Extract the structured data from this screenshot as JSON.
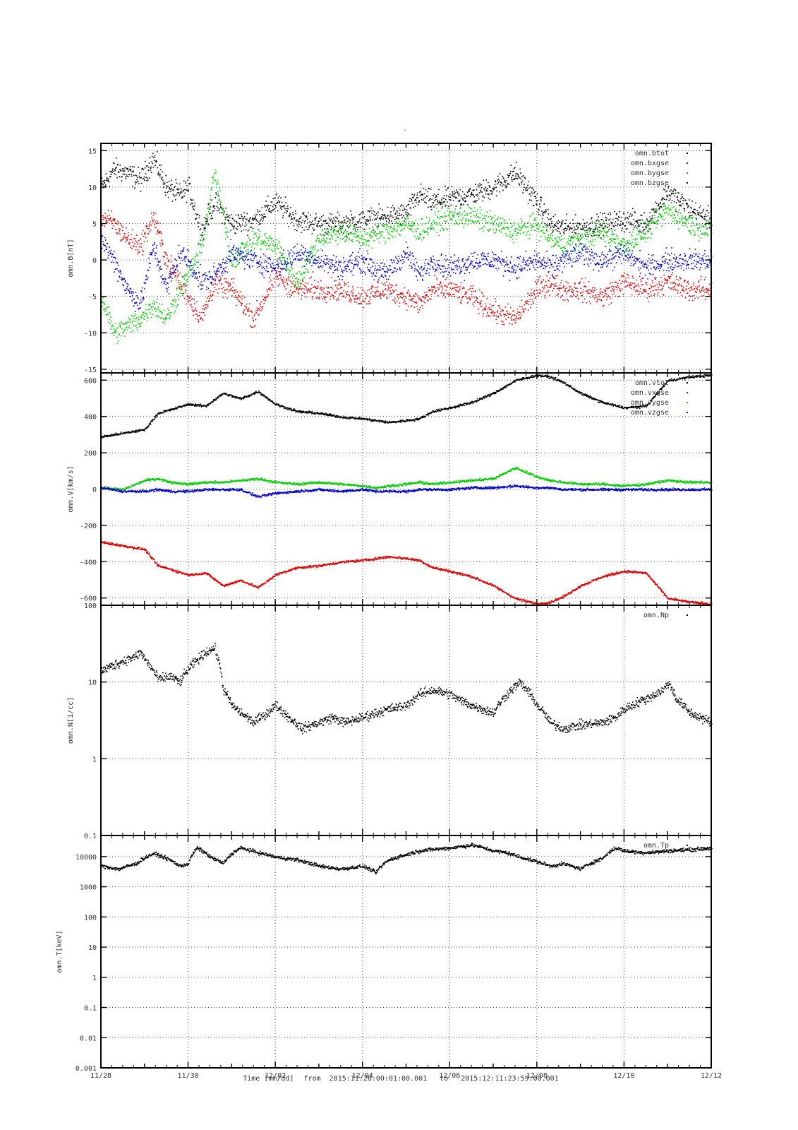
{
  "figure_title": "-",
  "footer": {
    "time_label": "Time [mm/dd]",
    "from_label": "from",
    "start": "2015:11:28:00:01:00.001",
    "to_label": "to",
    "end": "2015:12:11:23:59:00.001"
  },
  "colors": {
    "black": "#000000",
    "red": "#dd0000",
    "green": "#00cc00",
    "blue": "#0000cc",
    "grid": "#555555"
  },
  "chart_data": [
    {
      "type": "scatter",
      "ylabel": "omn.B[nT]",
      "yscale": "linear",
      "ylim": [
        -15.5,
        16
      ],
      "yticks": [
        -15,
        -10,
        -5,
        0,
        5,
        10,
        15
      ],
      "ytick_labels": [
        "-15",
        "-10",
        "-5",
        "0",
        "5",
        "10",
        "15"
      ],
      "xlim": [
        "11/28",
        "12/12"
      ],
      "xticks": [
        "11/28",
        "11/30",
        "12/02",
        "12/04",
        "12/06",
        "12/08",
        "12/10",
        "12/12"
      ],
      "grid": true,
      "legend": "top-right",
      "series": [
        {
          "name": "omn.btot",
          "color": "#000000",
          "x": [
            0,
            0.3,
            0.6,
            0.9,
            1.2,
            1.5,
            1.8,
            2.0,
            2.3,
            2.6,
            3.0,
            3.5,
            4.0,
            4.5,
            5.0,
            5.5,
            6.0,
            6.5,
            7.0,
            7.3,
            7.6,
            8.0,
            8.5,
            9.0,
            9.5,
            10.0,
            10.3,
            10.6,
            11.0,
            11.5,
            12.0,
            12.5,
            13.0,
            13.5,
            14.0
          ],
          "y": [
            10,
            12.5,
            12,
            11,
            14,
            10,
            9,
            10,
            4,
            8,
            5,
            5.5,
            8,
            5.5,
            5,
            5,
            5.5,
            6,
            6.5,
            9,
            8,
            8.5,
            9,
            10,
            12,
            8,
            5,
            4.5,
            4.5,
            5,
            5.5,
            5,
            9.5,
            7,
            5.5
          ]
        },
        {
          "name": "omn.bxgse",
          "color": "#dd0000",
          "x": [
            0,
            0.3,
            0.6,
            0.9,
            1.2,
            1.5,
            1.8,
            2.0,
            2.3,
            2.6,
            3.0,
            3.5,
            4.0,
            4.5,
            5.0,
            5.5,
            6.0,
            6.5,
            7.0,
            7.3,
            7.6,
            8.0,
            8.5,
            9.0,
            9.5,
            10.0,
            10.3,
            10.6,
            11.0,
            11.5,
            12.0,
            12.5,
            13.0,
            13.5,
            14.0
          ],
          "y": [
            6,
            5,
            3,
            2,
            6,
            0,
            -3,
            -5,
            -8,
            -3,
            -4,
            -8,
            -2,
            -4,
            -4,
            -4,
            -5,
            -4,
            -5,
            -6,
            -4,
            -4,
            -5,
            -7,
            -8,
            -4,
            -3,
            -4,
            -4,
            -5,
            -3,
            -4,
            -3,
            -4,
            -4
          ]
        },
        {
          "name": "omn.bygse",
          "color": "#00cc00",
          "x": [
            0,
            0.3,
            0.6,
            0.9,
            1.2,
            1.5,
            1.8,
            2.0,
            2.3,
            2.6,
            3.0,
            3.5,
            4.0,
            4.5,
            5.0,
            5.5,
            6.0,
            6.5,
            7.0,
            7.3,
            7.6,
            8.0,
            8.5,
            9.0,
            9.5,
            10.0,
            10.3,
            10.6,
            11.0,
            11.5,
            12.0,
            12.5,
            13.0,
            13.5,
            14.0
          ],
          "y": [
            -5,
            -10,
            -9,
            -8,
            -6,
            -8,
            -4,
            -2,
            2,
            12,
            0,
            3,
            2,
            -3,
            3,
            4,
            3,
            4,
            5,
            4,
            5,
            6,
            6,
            5,
            4,
            5,
            3,
            2,
            3,
            4,
            2,
            4,
            7,
            5,
            4
          ]
        },
        {
          "name": "omn.bzgse",
          "color": "#0000cc",
          "x": [
            0,
            0.3,
            0.6,
            0.9,
            1.2,
            1.5,
            1.8,
            2.0,
            2.3,
            2.6,
            3.0,
            3.5,
            4.0,
            4.5,
            5.0,
            5.5,
            6.0,
            6.5,
            7.0,
            7.3,
            7.6,
            8.0,
            8.5,
            9.0,
            9.5,
            10.0,
            10.3,
            10.6,
            11.0,
            11.5,
            12.0,
            12.5,
            13.0,
            13.5,
            14.0
          ],
          "y": [
            3,
            0,
            -4,
            -6,
            2,
            -4,
            1,
            0,
            -3,
            -2,
            1,
            0,
            -1,
            1,
            0,
            -1,
            0,
            -2,
            1,
            -2,
            0,
            -1,
            0,
            0,
            -1,
            0,
            -1,
            0,
            1,
            0,
            1,
            -1,
            0,
            0,
            0
          ]
        }
      ]
    },
    {
      "type": "scatter",
      "ylabel": "omn.V[km/s]",
      "yscale": "linear",
      "ylim": [
        -640,
        640
      ],
      "yticks": [
        -600,
        -400,
        -200,
        0,
        200,
        400,
        600
      ],
      "ytick_labels": [
        "-600",
        "-400",
        "-200",
        "0",
        "200",
        "400",
        "600"
      ],
      "xlim": [
        "11/28",
        "12/12"
      ],
      "grid": true,
      "legend": "top-right",
      "series": [
        {
          "name": "omn.vtot",
          "color": "#000000",
          "x": [
            0,
            0.5,
            1.0,
            1.3,
            1.6,
            2.0,
            2.4,
            2.8,
            3.2,
            3.6,
            4.0,
            4.5,
            5.0,
            5.5,
            6.0,
            6.3,
            6.6,
            7.0,
            7.3,
            7.6,
            8.0,
            8.5,
            9.0,
            9.5,
            10.0,
            10.3,
            10.6,
            11.0,
            11.5,
            12.0,
            12.5,
            13.0,
            13.5,
            14.0
          ],
          "y": [
            290,
            310,
            330,
            420,
            440,
            470,
            460,
            530,
            500,
            540,
            470,
            430,
            420,
            400,
            390,
            380,
            370,
            380,
            390,
            430,
            450,
            480,
            530,
            600,
            630,
            620,
            590,
            530,
            480,
            450,
            460,
            600,
            620,
            630
          ]
        },
        {
          "name": "omn.vxgse",
          "color": "#dd0000",
          "x": [
            0,
            0.5,
            1.0,
            1.3,
            1.6,
            2.0,
            2.4,
            2.8,
            3.2,
            3.6,
            4.0,
            4.5,
            5.0,
            5.5,
            6.0,
            6.3,
            6.6,
            7.0,
            7.3,
            7.6,
            8.0,
            8.5,
            9.0,
            9.5,
            10.0,
            10.3,
            10.6,
            11.0,
            11.5,
            12.0,
            12.5,
            13.0,
            13.5,
            14.0
          ],
          "y": [
            -290,
            -310,
            -330,
            -420,
            -440,
            -470,
            -460,
            -530,
            -500,
            -540,
            -470,
            -430,
            -420,
            -400,
            -390,
            -380,
            -370,
            -380,
            -390,
            -430,
            -450,
            -480,
            -530,
            -600,
            -630,
            -620,
            -590,
            -530,
            -480,
            -450,
            -460,
            -600,
            -620,
            -630
          ]
        },
        {
          "name": "omn.vygse",
          "color": "#00cc00",
          "x": [
            0,
            0.5,
            1.0,
            1.3,
            1.6,
            2.0,
            2.4,
            2.8,
            3.2,
            3.6,
            4.0,
            4.5,
            5.0,
            5.5,
            6.0,
            6.3,
            6.6,
            7.0,
            7.3,
            7.6,
            8.0,
            8.5,
            9.0,
            9.5,
            10.0,
            10.3,
            10.6,
            11.0,
            11.5,
            12.0,
            12.5,
            13.0,
            13.5,
            14.0
          ],
          "y": [
            10,
            0,
            50,
            60,
            40,
            30,
            40,
            40,
            50,
            60,
            40,
            30,
            40,
            30,
            20,
            10,
            20,
            30,
            40,
            30,
            40,
            50,
            60,
            120,
            70,
            50,
            40,
            30,
            30,
            20,
            30,
            50,
            40,
            40
          ]
        },
        {
          "name": "omn.vzgse",
          "color": "#0000cc",
          "x": [
            0,
            0.5,
            1.0,
            1.3,
            1.6,
            2.0,
            2.4,
            2.8,
            3.2,
            3.6,
            4.0,
            4.5,
            5.0,
            5.5,
            6.0,
            6.3,
            6.6,
            7.0,
            7.3,
            7.6,
            8.0,
            8.5,
            9.0,
            9.5,
            10.0,
            10.3,
            10.6,
            11.0,
            11.5,
            12.0,
            12.5,
            13.0,
            13.5,
            14.0
          ],
          "y": [
            10,
            -10,
            -10,
            0,
            -10,
            -10,
            0,
            0,
            0,
            -40,
            -20,
            -10,
            0,
            -10,
            0,
            -10,
            -10,
            -10,
            0,
            0,
            0,
            10,
            10,
            20,
            10,
            10,
            0,
            0,
            0,
            0,
            0,
            0,
            0,
            0
          ]
        }
      ]
    },
    {
      "type": "scatter",
      "ylabel": "omn.N[1/cc]",
      "yscale": "log",
      "ylim": [
        0.1,
        100
      ],
      "yticks": [
        0.1,
        1,
        10,
        100
      ],
      "ytick_labels": [
        "0.1",
        "1",
        "10",
        "100"
      ],
      "xlim": [
        "11/28",
        "12/12"
      ],
      "grid": true,
      "legend": "top-right",
      "series": [
        {
          "name": "omn.Np",
          "color": "#000000",
          "x": [
            0,
            0.4,
            0.8,
            0.9,
            1.0,
            1.3,
            1.6,
            1.8,
            2.0,
            2.3,
            2.4,
            2.6,
            2.8,
            3.0,
            3.2,
            3.5,
            3.8,
            4.0,
            4.3,
            4.6,
            5.0,
            5.3,
            5.6,
            6.0,
            6.3,
            6.6,
            7.0,
            7.3,
            7.6,
            8.0,
            8.2,
            8.5,
            9.0,
            9.3,
            9.6,
            10.0,
            10.3,
            10.6,
            11.0,
            11.5,
            11.8,
            12.0,
            12.3,
            12.6,
            12.9,
            13.0,
            13.2,
            13.5,
            14.0
          ],
          "y": [
            14,
            18,
            22,
            25,
            20,
            11,
            12,
            10,
            15,
            22,
            25,
            28,
            8,
            5,
            4,
            3,
            4,
            5,
            3.5,
            2.5,
            3,
            3.5,
            3,
            3.5,
            4,
            4.5,
            5,
            7,
            8,
            7,
            6,
            5,
            4,
            7,
            10,
            5,
            3,
            2.5,
            2.8,
            3,
            3.5,
            4.5,
            5.5,
            6.5,
            8,
            10,
            6,
            4,
            3
          ]
        }
      ]
    },
    {
      "type": "scatter",
      "ylabel": "omn.T[keV]",
      "yscale": "log",
      "ylim": [
        0.001,
        50000
      ],
      "yticks": [
        0.001,
        0.01,
        0.1,
        1,
        10,
        100,
        1000,
        10000
      ],
      "ytick_labels": [
        "0.001",
        "0.01",
        "0.1",
        "1",
        "10",
        "100",
        "1000",
        "10000"
      ],
      "xlim": [
        "11/28",
        "12/12"
      ],
      "grid": true,
      "legend": "top-right",
      "series": [
        {
          "name": "omn.Tp",
          "color": "#000000",
          "x": [
            0,
            0.4,
            0.8,
            1.2,
            1.5,
            1.8,
            2.0,
            2.2,
            2.5,
            2.8,
            3.2,
            3.6,
            4.0,
            4.5,
            5.0,
            5.5,
            6.0,
            6.3,
            6.6,
            7.0,
            7.3,
            7.6,
            8.0,
            8.5,
            9.0,
            9.3,
            9.6,
            10.0,
            10.3,
            10.6,
            11.0,
            11.5,
            11.8,
            12.0,
            12.4,
            12.8,
            13.0,
            13.3,
            13.6,
            14.0
          ],
          "y": [
            5000,
            4000,
            6000,
            13000,
            9000,
            5000,
            6000,
            20000,
            10000,
            6000,
            20000,
            14000,
            10000,
            8000,
            5000,
            4000,
            5000,
            3000,
            8000,
            12000,
            16000,
            18000,
            20000,
            25000,
            16000,
            14000,
            10000,
            7000,
            5000,
            6000,
            4000,
            9000,
            20000,
            16000,
            14000,
            15000,
            16000,
            17000,
            18000,
            20000
          ]
        }
      ]
    }
  ]
}
